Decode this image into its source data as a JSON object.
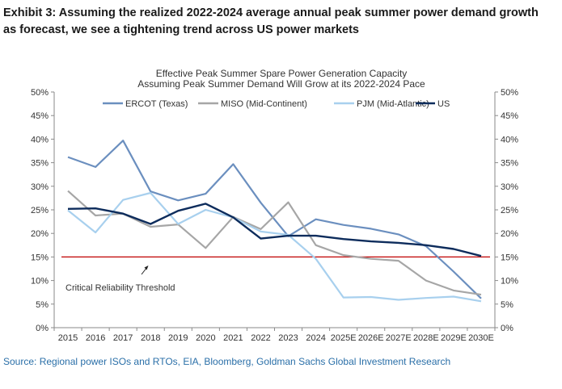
{
  "exhibit": {
    "title": "Exhibit 3: Assuming the realized 2022-2024 average annual peak summer power demand growth as forecast, we see a tightening trend across US power markets",
    "source": "Source: Regional power ISOs and RTOs, EIA, Bloomberg, Goldman Sachs Global Investment Research"
  },
  "chart_data": {
    "type": "line",
    "title": "Effective Peak Summer Spare Power Generation Capacity",
    "subtitle": "Assuming Peak Summer Demand Will Grow at its 2022-2024 Pace",
    "xlabel": "",
    "ylabel": "",
    "ylim": [
      0,
      50
    ],
    "y_ticks": [
      "0%",
      "5%",
      "10%",
      "15%",
      "20%",
      "25%",
      "30%",
      "35%",
      "40%",
      "45%",
      "50%"
    ],
    "y_tick_values": [
      0,
      5,
      10,
      15,
      20,
      25,
      30,
      35,
      40,
      45,
      50
    ],
    "grid": false,
    "legend_position": "top",
    "categories": [
      "2015",
      "2016",
      "2017",
      "2018",
      "2019",
      "2020",
      "2021",
      "2022",
      "2023",
      "2024",
      "2025E",
      "2026E",
      "2027E",
      "2028E",
      "2029E",
      "2030E"
    ],
    "series": [
      {
        "name": "ERCOT (Texas)",
        "color": "#6b8fbf",
        "values": [
          36.2,
          34.1,
          39.7,
          28.9,
          27.0,
          28.4,
          34.7,
          26.5,
          19.4,
          23.0,
          21.8,
          21.0,
          19.8,
          17.3,
          11.9,
          6.2
        ]
      },
      {
        "name": "MISO (Mid-Continent)",
        "color": "#a6a6a6",
        "values": [
          29.0,
          23.8,
          24.2,
          21.4,
          21.9,
          16.9,
          23.5,
          20.9,
          26.6,
          17.5,
          15.4,
          14.6,
          14.2,
          10.0,
          7.9,
          7.0
        ]
      },
      {
        "name": "PJM (Mid-Atlantic)",
        "color": "#a8d0ee",
        "values": [
          24.9,
          20.2,
          27.1,
          28.6,
          22.0,
          25.0,
          23.4,
          20.4,
          19.7,
          14.6,
          6.4,
          6.5,
          5.9,
          6.3,
          6.6,
          5.6
        ]
      },
      {
        "name": "US",
        "color": "#0d2c5c",
        "values": [
          25.2,
          25.3,
          24.2,
          22.0,
          24.8,
          26.3,
          23.4,
          18.9,
          19.5,
          19.5,
          18.8,
          18.3,
          18.0,
          17.5,
          16.7,
          15.2
        ]
      }
    ],
    "threshold": {
      "label": "Critical Reliability Threshold",
      "value": 15,
      "color": "#c00000"
    }
  }
}
